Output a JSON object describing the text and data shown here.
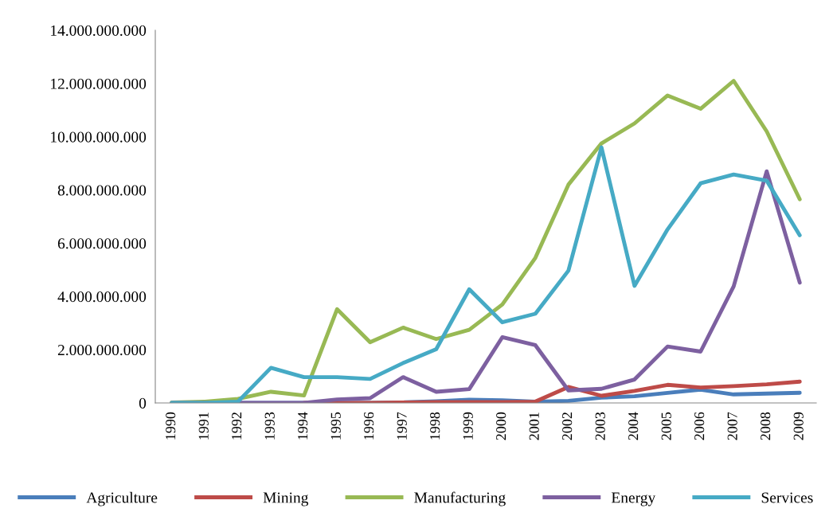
{
  "chart_data": {
    "type": "line",
    "categories": [
      "1990",
      "1991",
      "1992",
      "1993",
      "1994",
      "1995",
      "1996",
      "1997",
      "1998",
      "1999",
      "2000",
      "2001",
      "2002",
      "2003",
      "2004",
      "2005",
      "2006",
      "2007",
      "2008",
      "2009"
    ],
    "series": [
      {
        "name": "Agriculture",
        "color": "#4a7ebb",
        "values": [
          0,
          0,
          0,
          0,
          0,
          0,
          0,
          20000000,
          60000000,
          120000000,
          100000000,
          50000000,
          80000000,
          200000000,
          250000000,
          380000000,
          500000000,
          320000000,
          350000000,
          380000000
        ]
      },
      {
        "name": "Mining",
        "color": "#be4b48",
        "values": [
          null,
          null,
          null,
          null,
          0,
          0,
          0,
          20000000,
          30000000,
          30000000,
          30000000,
          50000000,
          600000000,
          270000000,
          450000000,
          680000000,
          580000000,
          630000000,
          700000000,
          800000000
        ]
      },
      {
        "name": "Manufacturing",
        "color": "#98b954",
        "values": [
          20000000,
          50000000,
          150000000,
          420000000,
          280000000,
          3520000000,
          2280000000,
          2830000000,
          2400000000,
          2750000000,
          3700000000,
          5450000000,
          8200000000,
          9750000000,
          10500000000,
          11550000000,
          11050000000,
          12100000000,
          10200000000,
          7650000000
        ]
      },
      {
        "name": "Energy",
        "color": "#7d60a0",
        "values": [
          0,
          0,
          0,
          0,
          0,
          130000000,
          180000000,
          970000000,
          420000000,
          520000000,
          2470000000,
          2170000000,
          470000000,
          530000000,
          880000000,
          2120000000,
          1930000000,
          4380000000,
          8700000000,
          4520000000
        ]
      },
      {
        "name": "Services",
        "color": "#46aac5",
        "values": [
          0,
          0,
          50000000,
          1320000000,
          970000000,
          970000000,
          900000000,
          1500000000,
          2020000000,
          4270000000,
          3030000000,
          3350000000,
          4970000000,
          9600000000,
          4400000000,
          6520000000,
          8250000000,
          8580000000,
          8350000000,
          6300000000
        ]
      }
    ],
    "ylim": [
      0,
      14000000000
    ],
    "yticks": [
      0,
      {
        "value": 2000000000,
        "label": "2.000.000.000"
      },
      {
        "value": 4000000000,
        "label": "4.000.000.000"
      },
      {
        "value": 6000000000,
        "label": "6.000.000.000"
      },
      {
        "value": 8000000000,
        "label": "8.000.000.000"
      },
      {
        "value": 10000000000,
        "label": "10.000.000.000"
      },
      {
        "value": 12000000000,
        "label": "12.000.000.000"
      },
      {
        "value": 14000000000,
        "label": "14.000.000.000"
      }
    ],
    "grid": false,
    "legend": "bottom",
    "marker": "none",
    "line_style": "solid"
  }
}
